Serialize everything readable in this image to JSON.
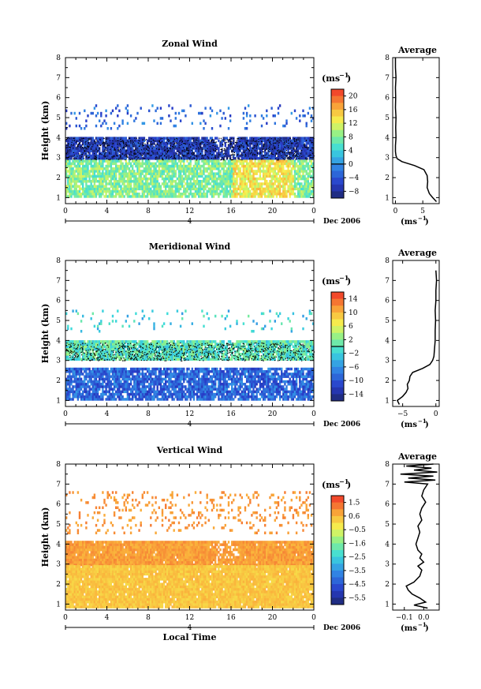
{
  "chart_data": [
    {
      "type": "heatmap",
      "title": "Zonal Wind",
      "ylabel": "Height (km)",
      "x_ticks": [
        "0",
        "4",
        "8",
        "12",
        "16",
        "20",
        "0"
      ],
      "y_ticks": [
        "1",
        "2",
        "3",
        "4",
        "5",
        "6",
        "7",
        "8"
      ],
      "xlim": [
        0,
        24
      ],
      "ylim": [
        0.7,
        8
      ],
      "day_label": "4",
      "date_label": "Dec 2006",
      "unit": "(ms",
      "unit_exp": "−1",
      "colorbar_ticks": [
        "20",
        "16",
        "12",
        "8",
        "4",
        "0",
        "−4",
        "−8"
      ],
      "colorbar_range": [
        -10,
        22
      ],
      "colorbar_mark": 0,
      "layers": [
        {
          "name": "sparse-upper",
          "hmin": 4.4,
          "hmax": 5.6,
          "density": 0.1,
          "value": -3
        },
        {
          "name": "core",
          "hmin": 2.9,
          "hmax": 4.0,
          "density": 0.92,
          "value": -6
        },
        {
          "name": "lower",
          "hmin": 1.0,
          "hmax": 2.8,
          "density": 0.85,
          "value": 8
        }
      ],
      "profile": {
        "title": "Average",
        "x_ticks": [
          "0",
          "5"
        ],
        "xlim": [
          -0.5,
          8
        ],
        "unit": "(ms",
        "unit_exp": "−1",
        "heights": [
          0.8,
          1.0,
          1.2,
          1.5,
          1.8,
          2.1,
          2.4,
          2.6,
          2.8,
          2.95,
          3.1,
          3.3,
          3.6,
          4.0,
          4.5,
          5.0,
          5.5,
          6.0,
          6.5,
          7.0,
          7.5,
          8.0
        ],
        "values": [
          7.5,
          6.8,
          6.2,
          5.8,
          5.9,
          5.8,
          5.2,
          3.5,
          1.2,
          0.3,
          0.1,
          0.0,
          0.0,
          0.1,
          0.05,
          0.1,
          0.0,
          0.05,
          0.0,
          0.1,
          0.0,
          0.0
        ]
      }
    },
    {
      "type": "heatmap",
      "title": "Meridional Wind",
      "ylabel": "Height (km)",
      "x_ticks": [
        "0",
        "4",
        "8",
        "12",
        "16",
        "20",
        "0"
      ],
      "y_ticks": [
        "1",
        "2",
        "3",
        "4",
        "5",
        "6",
        "7",
        "8"
      ],
      "xlim": [
        0,
        24
      ],
      "ylim": [
        0.7,
        8
      ],
      "day_label": "4",
      "date_label": "Dec 2006",
      "unit": "(ms",
      "unit_exp": "−1",
      "colorbar_ticks": [
        "14",
        "10",
        "6",
        "2",
        "−2",
        "−6",
        "−10",
        "−14"
      ],
      "colorbar_range": [
        -16,
        16
      ],
      "colorbar_mark": 0,
      "layers": [
        {
          "name": "sparse-upper",
          "hmin": 4.4,
          "hmax": 5.5,
          "density": 0.08,
          "value": -2
        },
        {
          "name": "core",
          "hmin": 3.0,
          "hmax": 3.9,
          "density": 0.92,
          "value": 0
        },
        {
          "name": "lower",
          "hmin": 1.0,
          "hmax": 2.6,
          "density": 0.85,
          "value": -9
        }
      ],
      "profile": {
        "title": "Average",
        "x_ticks": [
          "−5",
          "0"
        ],
        "xlim": [
          -6.5,
          0.5
        ],
        "unit": "(ms",
        "unit_exp": "−1",
        "heights": [
          0.8,
          1.0,
          1.2,
          1.4,
          1.6,
          1.8,
          2.0,
          2.2,
          2.4,
          2.6,
          2.8,
          3.0,
          3.2,
          3.6,
          4.0,
          4.5,
          5.0,
          5.5,
          6.0,
          6.5,
          7.0,
          7.5
        ],
        "values": [
          -5.5,
          -5.8,
          -5.0,
          -4.5,
          -4.2,
          -4.3,
          -4.0,
          -3.9,
          -3.5,
          -2.0,
          -0.9,
          -0.5,
          -0.3,
          -0.2,
          -0.1,
          -0.1,
          -0.05,
          -0.1,
          0.0,
          0.0,
          0.1,
          0.0
        ]
      }
    },
    {
      "type": "heatmap",
      "title": "Vertical Wind",
      "ylabel": "Height (km)",
      "xlabel": "Local Time",
      "x_ticks": [
        "0",
        "4",
        "8",
        "12",
        "16",
        "20",
        "0"
      ],
      "y_ticks": [
        "1",
        "2",
        "3",
        "4",
        "5",
        "6",
        "7",
        "8"
      ],
      "xlim": [
        0,
        24
      ],
      "ylim": [
        0.7,
        8
      ],
      "day_label": "4",
      "date_label": "Dec 2006",
      "unit": "(ms",
      "unit_exp": "−1",
      "colorbar_ticks": [
        "1.5",
        "0.6",
        "−0.5",
        "−1.6",
        "−2.5",
        "−3.5",
        "−4.5",
        "−5.5"
      ],
      "colorbar_range": [
        -6,
        2
      ],
      "colorbar_mark": null,
      "layers": [
        {
          "name": "sparse-upper",
          "hmin": 4.5,
          "hmax": 6.6,
          "density": 0.14,
          "value": 0.9
        },
        {
          "name": "core",
          "hmin": 2.9,
          "hmax": 4.1,
          "density": 0.98,
          "value": 0.8
        },
        {
          "name": "lower",
          "hmin": 0.8,
          "hmax": 2.9,
          "density": 0.97,
          "value": 0.3
        }
      ],
      "profile": {
        "title": "Average",
        "x_ticks": [
          "−0.1",
          "0.0"
        ],
        "xlim": [
          -0.16,
          0.08
        ],
        "unit": "(ms",
        "unit_exp": "−1",
        "heights": [
          0.8,
          0.95,
          1.1,
          1.3,
          1.5,
          1.7,
          1.9,
          2.1,
          2.4,
          2.7,
          2.9,
          3.1,
          3.3,
          3.5,
          3.7,
          4.0,
          4.3,
          4.6,
          4.9,
          5.2,
          5.5,
          5.8,
          6.1,
          6.4,
          6.7,
          7.0,
          7.1,
          7.2,
          7.3,
          7.4,
          7.5,
          7.6,
          7.7,
          7.8,
          7.9,
          8.0
        ],
        "values": [
          0.02,
          -0.05,
          0.01,
          -0.02,
          -0.06,
          -0.08,
          -0.09,
          -0.05,
          -0.02,
          -0.01,
          -0.03,
          0.0,
          -0.02,
          -0.01,
          -0.03,
          -0.04,
          -0.03,
          -0.02,
          -0.03,
          -0.01,
          -0.02,
          -0.01,
          0.01,
          -0.01,
          0.0,
          0.02,
          -0.1,
          0.06,
          -0.08,
          0.05,
          -0.12,
          0.07,
          -0.05,
          0.04,
          -0.09,
          0.05
        ]
      }
    }
  ]
}
